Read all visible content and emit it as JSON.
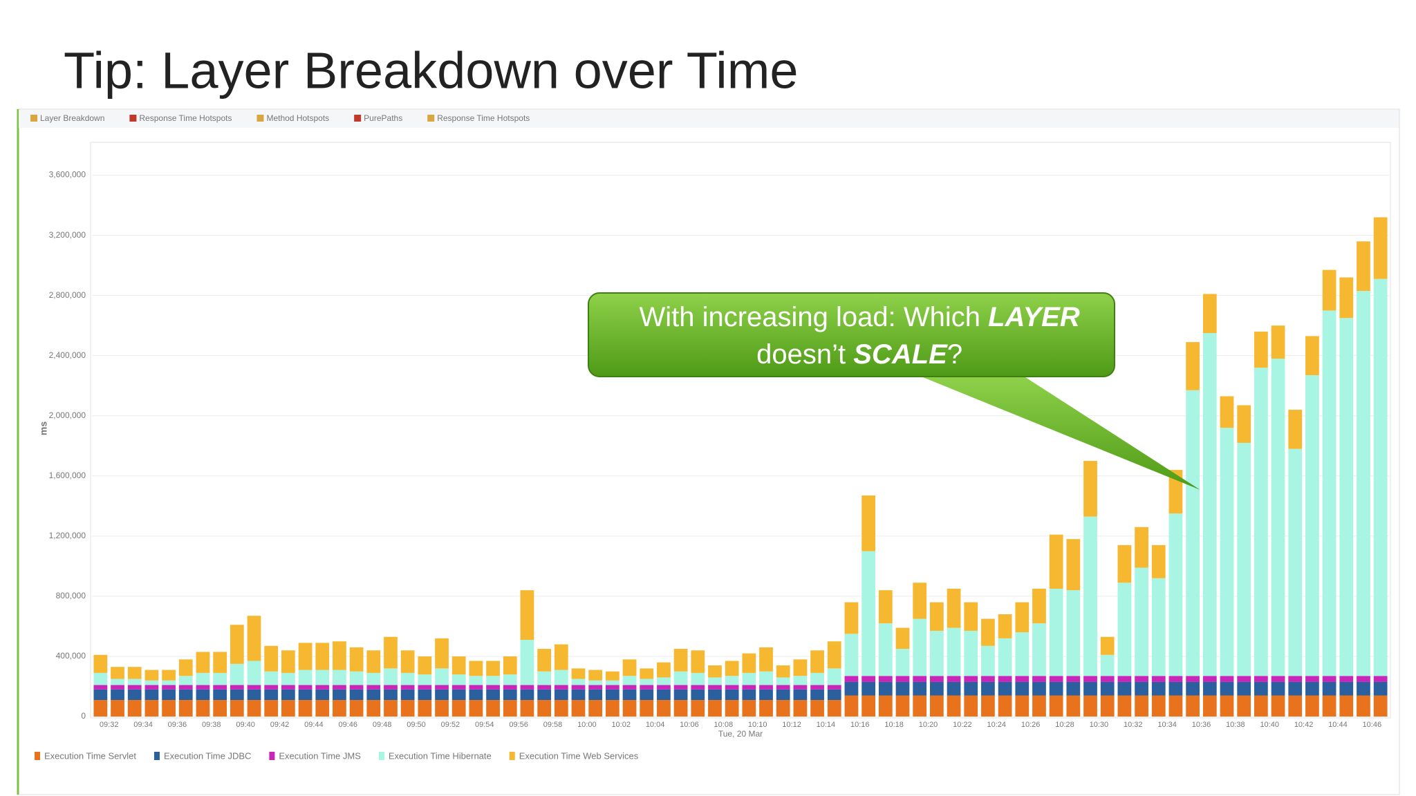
{
  "header": {
    "title": "Tip: Layer Breakdown over Time"
  },
  "toolbar": {
    "tabs": [
      "Layer Breakdown",
      "Response Time Hotspots",
      "Method Hotspots",
      "PurePaths",
      "Response Time Hotspots"
    ]
  },
  "callout": {
    "line1": [
      "With increasing load: Which ",
      "LAYER"
    ],
    "line2": [
      "doesn’t ",
      "SCALE",
      "?"
    ]
  },
  "chart_data": {
    "type": "stacked_bar",
    "ylabel": "ms",
    "xlabel": "Tue, 20 Mar",
    "ylim": [
      0,
      3800000
    ],
    "yticks": [
      0,
      {
        "value": 400000,
        "label": "400,000"
      },
      {
        "value": 800000,
        "label": "800,000"
      },
      {
        "value": 1200000,
        "label": "1,200,000"
      },
      {
        "value": 1600000,
        "label": "1,600,000"
      },
      {
        "value": 2000000,
        "label": "2,000,000"
      },
      {
        "value": 2400000,
        "label": "2,400,000"
      },
      {
        "value": 2800000,
        "label": "2,800,000"
      },
      {
        "value": 3200000,
        "label": "3,200,000"
      },
      {
        "value": 3600000,
        "label": "3,600,000"
      }
    ],
    "grid": true,
    "legend": "bottom",
    "categories": [
      "09:32",
      null,
      "09:34",
      null,
      "09:36",
      null,
      "09:38",
      null,
      "09:40",
      null,
      "09:42",
      null,
      "09:44",
      null,
      "09:46",
      null,
      "09:48",
      null,
      "09:50",
      null,
      "09:52",
      null,
      "09:54",
      null,
      "09:56",
      null,
      "09:58",
      null,
      "10:00",
      null,
      "10:02",
      null,
      "10:04",
      null,
      "10:06",
      null,
      "10:08",
      null,
      "10:10",
      null,
      "10:12",
      null,
      "10:14",
      null,
      "10:16",
      null,
      "10:18",
      null,
      "10:20",
      null,
      "10:22",
      null,
      "10:24",
      null,
      "10:26",
      null,
      "10:28",
      null,
      "10:30",
      null,
      "10:32",
      null,
      "10:34",
      null,
      "10:36",
      null,
      "10:38",
      null,
      "10:40",
      null,
      "10:42",
      null,
      "10:44",
      null,
      "10:46",
      null
    ],
    "series": [
      {
        "name": "Execution Time Servlet",
        "color": "#e8731c",
        "values": [
          110000,
          110000,
          110000,
          110000,
          110000,
          110000,
          110000,
          110000,
          110000,
          110000,
          110000,
          110000,
          110000,
          110000,
          110000,
          110000,
          110000,
          110000,
          110000,
          110000,
          110000,
          110000,
          110000,
          110000,
          110000,
          110000,
          110000,
          110000,
          110000,
          110000,
          110000,
          110000,
          110000,
          110000,
          110000,
          110000,
          110000,
          110000,
          110000,
          110000,
          110000,
          110000,
          110000,
          110000,
          140000,
          140000,
          140000,
          140000,
          140000,
          140000,
          140000,
          140000,
          140000,
          140000,
          140000,
          140000,
          140000,
          140000,
          140000,
          140000,
          140000,
          140000,
          140000,
          140000,
          140000,
          140000,
          140000,
          140000,
          140000,
          140000,
          140000,
          140000,
          140000,
          140000,
          140000,
          140000
        ]
      },
      {
        "name": "Execution Time JDBC",
        "color": "#2b5f9e",
        "values": [
          70000,
          70000,
          70000,
          70000,
          70000,
          70000,
          70000,
          70000,
          70000,
          70000,
          70000,
          70000,
          70000,
          70000,
          70000,
          70000,
          70000,
          70000,
          70000,
          70000,
          70000,
          70000,
          70000,
          70000,
          70000,
          70000,
          70000,
          70000,
          70000,
          70000,
          70000,
          70000,
          70000,
          70000,
          70000,
          70000,
          70000,
          70000,
          70000,
          70000,
          70000,
          70000,
          70000,
          70000,
          90000,
          90000,
          90000,
          90000,
          90000,
          90000,
          90000,
          90000,
          90000,
          90000,
          90000,
          90000,
          90000,
          90000,
          90000,
          90000,
          90000,
          90000,
          90000,
          90000,
          90000,
          90000,
          90000,
          90000,
          90000,
          90000,
          90000,
          90000,
          90000,
          90000,
          90000,
          90000
        ]
      },
      {
        "name": "Execution Time JMS",
        "color": "#c826b8",
        "values": [
          30000,
          30000,
          30000,
          30000,
          30000,
          30000,
          30000,
          30000,
          30000,
          30000,
          30000,
          30000,
          30000,
          30000,
          30000,
          30000,
          30000,
          30000,
          30000,
          30000,
          30000,
          30000,
          30000,
          30000,
          30000,
          30000,
          30000,
          30000,
          30000,
          30000,
          30000,
          30000,
          30000,
          30000,
          30000,
          30000,
          30000,
          30000,
          30000,
          30000,
          30000,
          30000,
          30000,
          30000,
          40000,
          40000,
          40000,
          40000,
          40000,
          40000,
          40000,
          40000,
          40000,
          40000,
          40000,
          40000,
          40000,
          40000,
          40000,
          40000,
          40000,
          40000,
          40000,
          40000,
          40000,
          40000,
          40000,
          40000,
          40000,
          40000,
          40000,
          40000,
          40000,
          40000,
          40000,
          40000
        ]
      },
      {
        "name": "Execution Time Hibernate",
        "color": "#a8f5e4",
        "values": [
          80000,
          40000,
          40000,
          30000,
          30000,
          60000,
          80000,
          80000,
          140000,
          160000,
          90000,
          80000,
          100000,
          100000,
          100000,
          90000,
          80000,
          110000,
          80000,
          70000,
          110000,
          70000,
          60000,
          60000,
          70000,
          300000,
          90000,
          100000,
          40000,
          30000,
          30000,
          60000,
          40000,
          50000,
          90000,
          80000,
          50000,
          60000,
          80000,
          90000,
          50000,
          60000,
          80000,
          110000,
          280000,
          830000,
          350000,
          180000,
          380000,
          300000,
          320000,
          300000,
          200000,
          250000,
          290000,
          350000,
          580000,
          570000,
          1060000,
          140000,
          620000,
          720000,
          650000,
          1080000,
          1900000,
          2280000,
          1650000,
          1550000,
          2050000,
          2110000,
          1510000,
          2000000,
          2430000,
          2380000,
          2560000,
          2640000
        ]
      },
      {
        "name": "Execution Time Web Services",
        "color": "#f6b830",
        "values": [
          120000,
          80000,
          80000,
          70000,
          70000,
          110000,
          140000,
          140000,
          260000,
          300000,
          170000,
          150000,
          180000,
          180000,
          190000,
          160000,
          150000,
          210000,
          150000,
          120000,
          200000,
          120000,
          100000,
          100000,
          120000,
          330000,
          150000,
          170000,
          70000,
          70000,
          60000,
          110000,
          70000,
          100000,
          150000,
          150000,
          80000,
          100000,
          130000,
          160000,
          80000,
          110000,
          150000,
          180000,
          210000,
          370000,
          220000,
          140000,
          240000,
          190000,
          260000,
          190000,
          180000,
          160000,
          200000,
          230000,
          360000,
          340000,
          370000,
          120000,
          250000,
          270000,
          220000,
          290000,
          320000,
          260000,
          210000,
          250000,
          240000,
          220000,
          260000,
          260000,
          270000,
          270000,
          330000,
          410000
        ]
      }
    ]
  }
}
